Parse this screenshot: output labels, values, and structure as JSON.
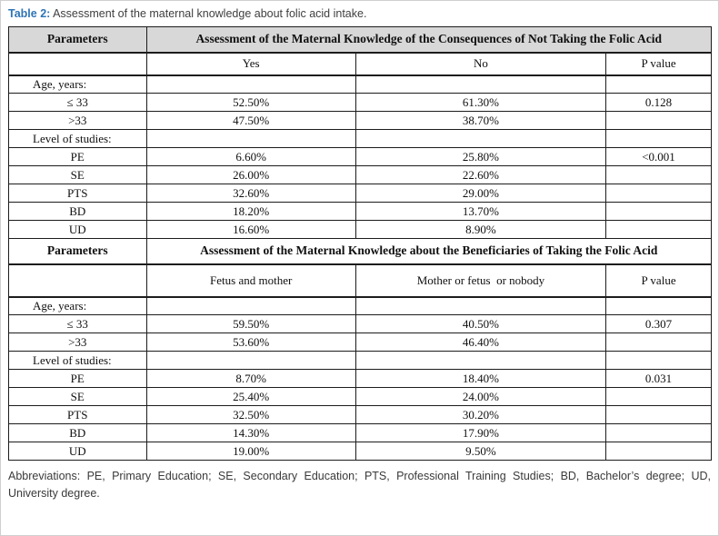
{
  "colors": {
    "accent_blue": "#2E74B5",
    "header_bg": "#D8D8D8",
    "border": "#1C1C1C"
  },
  "caption": {
    "label": "Table 2:",
    "text": " Assessment of the maternal knowledge about folic acid intake."
  },
  "table": {
    "sections": [
      {
        "header": {
          "parameters": "Parameters",
          "title": "Assessment of the Maternal Knowledge of the Consequences of Not Taking the Folic Acid",
          "gray": true
        },
        "columns": [
          "",
          "Yes",
          "No",
          "P value"
        ],
        "rows": [
          {
            "label": "Age, years:",
            "group": true,
            "cells": [
              "",
              "",
              ""
            ]
          },
          {
            "label": "≤ 33",
            "group": false,
            "cells": [
              "52.50%",
              "61.30%",
              "0.128"
            ]
          },
          {
            "label": ">33",
            "group": false,
            "cells": [
              "47.50%",
              "38.70%",
              ""
            ]
          },
          {
            "label": "Level of studies:",
            "group": true,
            "cells": [
              "",
              "",
              ""
            ]
          },
          {
            "label": "PE",
            "group": false,
            "cells": [
              "6.60%",
              "25.80%",
              "<0.001"
            ]
          },
          {
            "label": "SE",
            "group": false,
            "cells": [
              "26.00%",
              "22.60%",
              ""
            ]
          },
          {
            "label": "PTS",
            "group": false,
            "cells": [
              "32.60%",
              "29.00%",
              ""
            ]
          },
          {
            "label": "BD",
            "group": false,
            "cells": [
              "18.20%",
              "13.70%",
              ""
            ]
          },
          {
            "label": "UD",
            "group": false,
            "cells": [
              "16.60%",
              "8.90%",
              ""
            ]
          }
        ]
      },
      {
        "header": {
          "parameters": "Parameters",
          "title": "Assessment of the Maternal Knowledge about the Beneficiaries of Taking the Folic Acid",
          "gray": false
        },
        "columns": [
          "",
          "Fetus and mother",
          "Mother or fetus  or nobody",
          "P value"
        ],
        "rows": [
          {
            "label": "Age, years:",
            "group": true,
            "cells": [
              "",
              "",
              ""
            ]
          },
          {
            "label": "≤ 33",
            "group": false,
            "cells": [
              "59.50%",
              "40.50%",
              "0.307"
            ]
          },
          {
            "label": ">33",
            "group": false,
            "cells": [
              "53.60%",
              "46.40%",
              ""
            ]
          },
          {
            "label": "Level of studies:",
            "group": true,
            "cells": [
              "",
              "",
              ""
            ]
          },
          {
            "label": "PE",
            "group": false,
            "cells": [
              "8.70%",
              "18.40%",
              "0.031"
            ]
          },
          {
            "label": "SE",
            "group": false,
            "cells": [
              "25.40%",
              "24.00%",
              ""
            ]
          },
          {
            "label": "PTS",
            "group": false,
            "cells": [
              "32.50%",
              "30.20%",
              ""
            ]
          },
          {
            "label": "BD",
            "group": false,
            "cells": [
              "14.30%",
              "17.90%",
              ""
            ]
          },
          {
            "label": "UD",
            "group": false,
            "cells": [
              "19.00%",
              "9.50%",
              ""
            ]
          }
        ]
      }
    ]
  },
  "footnote": "Abbreviations: PE, Primary Education; SE, Secondary Education; PTS, Professional Training Studies; BD, Bachelor’s degree; UD, University degree."
}
